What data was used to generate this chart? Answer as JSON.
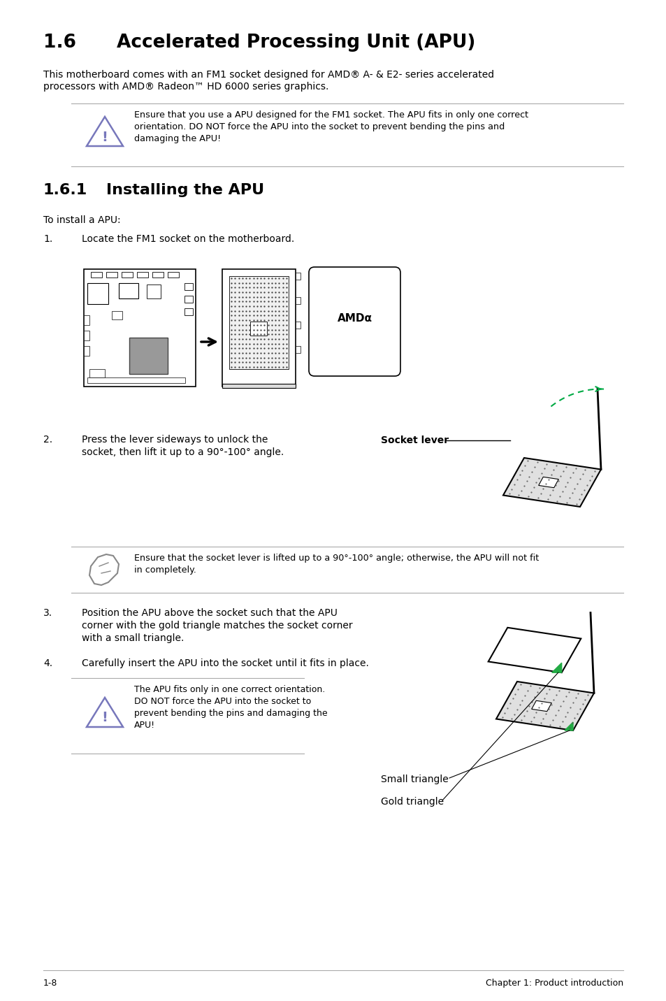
{
  "bg_color": "#ffffff",
  "title_section_num": "1.6",
  "title_section_text": "Accelerated Processing Unit (APU)",
  "body_text1_line1": "This motherboard comes with an FM1 socket designed for AMD® A- & E2- series accelerated",
  "body_text1_line2": "processors with AMD® Radeon™ HD 6000 series graphics.",
  "warning1_text_line1": "Ensure that you use a APU designed for the FM1 socket. The APU fits in only one correct",
  "warning1_text_line2": "orientation. DO NOT force the APU into the socket to prevent bending the pins and",
  "warning1_text_line3": "damaging the APU!",
  "subtitle_num": "1.6.1",
  "subtitle_text": "Installing the APU",
  "to_install": "To install a APU:",
  "step1": "1.",
  "step1_text": "Locate the FM1 socket on the motherboard.",
  "step2_num": "2.",
  "step2_text_line1": "Press the lever sideways to unlock the",
  "step2_text_line2": "socket, then lift it up to a 90°-100° angle.",
  "socket_lever_label": "Socket lever",
  "warning2_text_line1": "Ensure that the socket lever is lifted up to a 90°-100° angle; otherwise, the APU will not fit",
  "warning2_text_line2": "in completely.",
  "step3_num": "3.",
  "step3_text_line1": "Position the APU above the socket such that the APU",
  "step3_text_line2": "corner with the gold triangle matches the socket corner",
  "step3_text_line3": "with a small triangle.",
  "step4_num": "4.",
  "step4_text": "Carefully insert the APU into the socket until it fits in place.",
  "warning3_text_line1": "The APU fits only in one correct orientation.",
  "warning3_text_line2": "DO NOT force the APU into the socket to",
  "warning3_text_line3": "prevent bending the pins and damaging the",
  "warning3_text_line4": "APU!",
  "small_triangle_label": "Small triangle",
  "gold_triangle_label": "Gold triangle",
  "footer_left": "1-8",
  "footer_right": "Chapter 1: Product introduction",
  "text_color": "#000000",
  "line_color": "#aaaaaa",
  "warn_icon_color": "#7777bb",
  "green_arrow_color": "#00aa44"
}
